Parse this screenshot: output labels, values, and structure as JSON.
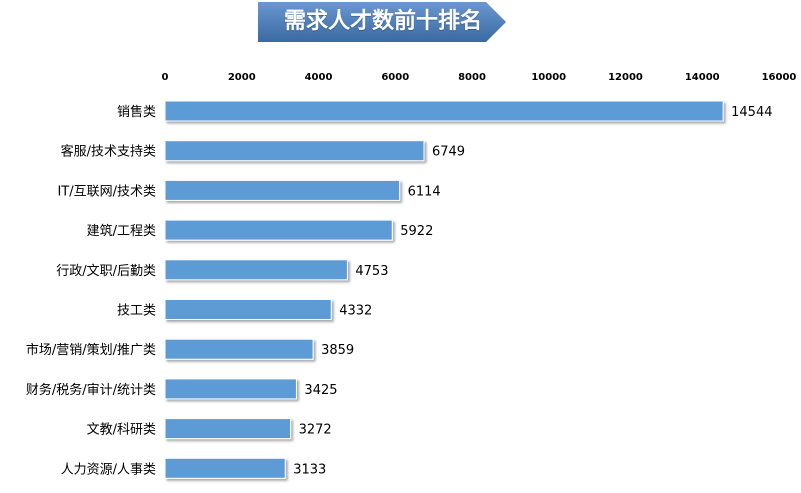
{
  "chart_data": {
    "type": "bar",
    "orientation": "horizontal",
    "title": "需求人才数前十排名",
    "categories": [
      "销售类",
      "客服/技术支持类",
      "IT/互联网/技术类",
      "建筑/工程类",
      "行政/文职/后勤类",
      "技工类",
      "市场/营销/策划/推广类",
      "财务/税务/审计/统计类",
      "文教/科研类",
      "人力资源/人事类"
    ],
    "values": [
      14544,
      6749,
      6114,
      5922,
      4753,
      4332,
      3859,
      3425,
      3272,
      3133
    ],
    "xlim": [
      0,
      16000
    ],
    "x_ticks": [
      0,
      2000,
      4000,
      6000,
      8000,
      10000,
      12000,
      14000,
      16000
    ],
    "x_axis_position": "top",
    "data_labels": true,
    "grid": false,
    "legend": "none",
    "colors": {
      "bar_fill": "#5b9bd5",
      "bar_edge": "#4a88c2",
      "title_fill": "#4f81bd",
      "title_fill_dark": "#3a6aa3",
      "text": "#000000"
    }
  }
}
